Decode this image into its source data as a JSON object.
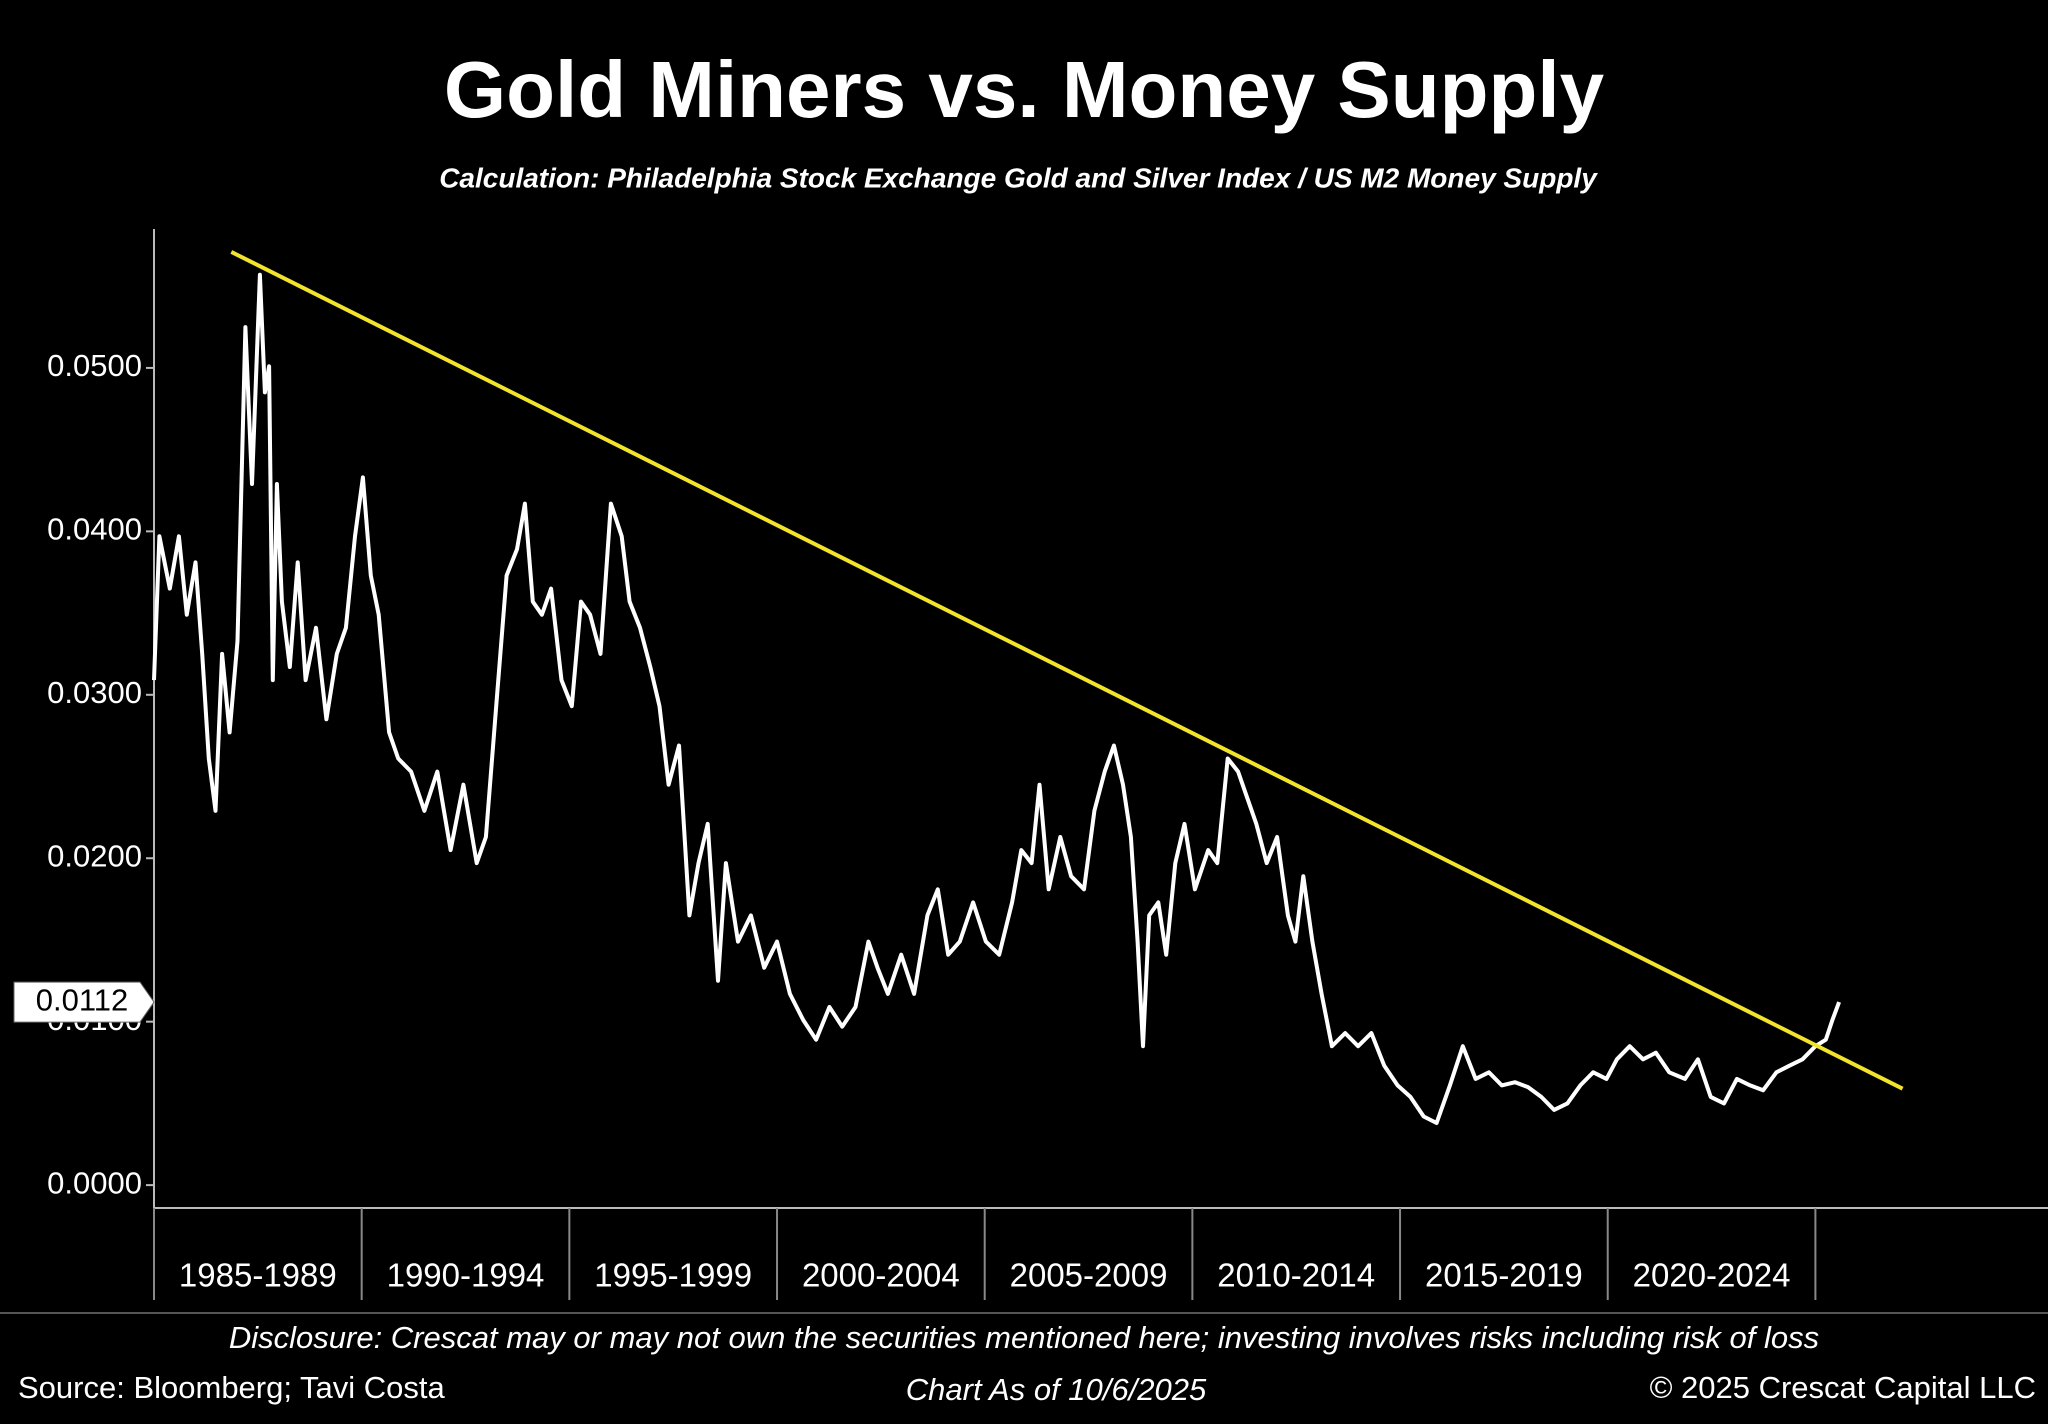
{
  "chart_data": {
    "type": "line",
    "title": "Gold Miners vs. Money Supply",
    "subtitle": "Calculation: Philadelphia Stock Exchange Gold and Silver Index / US M2 Money Supply",
    "xlim": [
      1985,
      2030.6
    ],
    "xticks": [
      1985,
      1990,
      1995,
      2000,
      2005,
      2010,
      2015,
      2020,
      2025
    ],
    "x_labels": [
      "1985-1989",
      "1990-1994",
      "1995-1999",
      "2000-2004",
      "2005-2009",
      "2010-2014",
      "2015-2019",
      "2020-2024"
    ],
    "ylim": [
      -0.0014,
      0.0585
    ],
    "yticks": [
      {
        "value": 0,
        "label": "0.0000"
      },
      {
        "value": 0.01,
        "label": "0.0100"
      },
      {
        "value": 0.02,
        "label": "0.0200"
      },
      {
        "value": 0.03,
        "label": "0.0300"
      },
      {
        "value": 0.04,
        "label": "0.0400"
      },
      {
        "value": 0.05,
        "label": "0.0500"
      }
    ],
    "series": [
      {
        "color": "#ffffff",
        "x": [
          1985.0,
          1985.13,
          1985.38,
          1985.6,
          1985.79,
          1986.0,
          1986.16,
          1986.32,
          1986.48,
          1986.64,
          1986.82,
          1987.01,
          1987.2,
          1987.36,
          1987.55,
          1987.67,
          1987.77,
          1987.86,
          1987.96,
          1988.08,
          1988.27,
          1988.46,
          1988.65,
          1988.9,
          1989.15,
          1989.4,
          1989.62,
          1989.84,
          1990.03,
          1990.22,
          1990.41,
          1990.66,
          1990.88,
          1991.19,
          1991.51,
          1991.82,
          1992.14,
          1992.45,
          1992.77,
          1992.99,
          1993.24,
          1993.49,
          1993.74,
          1993.93,
          1994.12,
          1994.34,
          1994.56,
          1994.81,
          1995.06,
          1995.28,
          1995.5,
          1995.75,
          1996.0,
          1996.26,
          1996.45,
          1996.7,
          1996.95,
          1997.17,
          1997.39,
          1997.64,
          1997.89,
          1998.11,
          1998.33,
          1998.58,
          1998.77,
          1999.06,
          1999.37,
          1999.69,
          2000.0,
          2000.31,
          2000.63,
          2000.94,
          2001.26,
          2001.57,
          2001.89,
          2002.2,
          2002.42,
          2002.67,
          2002.99,
          2003.3,
          2003.62,
          2003.87,
          2004.12,
          2004.4,
          2004.72,
          2005.03,
          2005.35,
          2005.66,
          2005.88,
          2006.13,
          2006.32,
          2006.54,
          2006.82,
          2007.08,
          2007.39,
          2007.64,
          2007.89,
          2008.11,
          2008.33,
          2008.52,
          2008.68,
          2008.81,
          2008.96,
          2009.18,
          2009.37,
          2009.59,
          2009.81,
          2010.06,
          2010.38,
          2010.6,
          2010.85,
          2011.1,
          2011.32,
          2011.54,
          2011.79,
          2012.04,
          2012.3,
          2012.48,
          2012.67,
          2012.89,
          2013.11,
          2013.36,
          2013.68,
          2013.99,
          2014.31,
          2014.62,
          2014.94,
          2015.25,
          2015.57,
          2015.88,
          2016.2,
          2016.51,
          2016.82,
          2017.14,
          2017.45,
          2017.77,
          2018.08,
          2018.4,
          2018.71,
          2019.03,
          2019.34,
          2019.65,
          2019.97,
          2020.22,
          2020.53,
          2020.85,
          2021.16,
          2021.48,
          2021.86,
          2022.17,
          2022.48,
          2022.8,
          2023.11,
          2023.43,
          2023.74,
          2024.06,
          2024.37,
          2024.69,
          2025.0,
          2025.25,
          2025.41,
          2025.57
        ],
        "values": [
          0.0309,
          0.0397,
          0.0365,
          0.0397,
          0.0349,
          0.0381,
          0.0325,
          0.0261,
          0.0229,
          0.0325,
          0.0277,
          0.0333,
          0.0525,
          0.0429,
          0.0557,
          0.0485,
          0.0501,
          0.0309,
          0.0429,
          0.0357,
          0.0317,
          0.0381,
          0.0309,
          0.0341,
          0.0285,
          0.0325,
          0.0341,
          0.0397,
          0.0433,
          0.0373,
          0.0349,
          0.0277,
          0.0261,
          0.0253,
          0.0229,
          0.0253,
          0.0205,
          0.0245,
          0.0197,
          0.0213,
          0.0293,
          0.0373,
          0.0389,
          0.0417,
          0.0357,
          0.0349,
          0.0365,
          0.0309,
          0.0293,
          0.0357,
          0.0349,
          0.0325,
          0.0417,
          0.0397,
          0.0357,
          0.0341,
          0.0317,
          0.0293,
          0.0245,
          0.0269,
          0.0165,
          0.0197,
          0.0221,
          0.0125,
          0.0197,
          0.0149,
          0.0165,
          0.0133,
          0.0149,
          0.0117,
          0.0101,
          0.0089,
          0.0109,
          0.0097,
          0.0109,
          0.0149,
          0.0133,
          0.0117,
          0.0141,
          0.0117,
          0.0165,
          0.0181,
          0.0141,
          0.0149,
          0.0173,
          0.0149,
          0.0141,
          0.0173,
          0.0205,
          0.0197,
          0.0245,
          0.0181,
          0.0213,
          0.0189,
          0.0181,
          0.0229,
          0.0253,
          0.0269,
          0.0245,
          0.0213,
          0.0149,
          0.0085,
          0.0165,
          0.0173,
          0.0141,
          0.0197,
          0.0221,
          0.0181,
          0.0205,
          0.0197,
          0.0261,
          0.0253,
          0.0237,
          0.0221,
          0.0197,
          0.0213,
          0.0165,
          0.0149,
          0.0189,
          0.0149,
          0.0117,
          0.0085,
          0.0093,
          0.0085,
          0.0093,
          0.0073,
          0.0061,
          0.0054,
          0.0042,
          0.0038,
          0.0061,
          0.0085,
          0.0065,
          0.0069,
          0.0061,
          0.0063,
          0.006,
          0.0054,
          0.0046,
          0.005,
          0.0061,
          0.0069,
          0.0065,
          0.0077,
          0.0085,
          0.0077,
          0.0081,
          0.0069,
          0.0065,
          0.0077,
          0.0054,
          0.005,
          0.0065,
          0.0061,
          0.0058,
          0.0069,
          0.0073,
          0.0077,
          0.0085,
          0.0089,
          0.0101,
          0.0112
        ]
      }
    ],
    "trendline": {
      "color": "#f2e42a",
      "x": [
        1986.86,
        2027.1
      ],
      "values": [
        0.0571,
        0.0059
      ]
    },
    "current_value": {
      "value": 0.0112,
      "label": "0.0112"
    },
    "footer": {
      "disclosure": "Disclosure: Crescat may or may not own the securities mentioned here; investing involves risks including risk of loss",
      "source": "Source: Bloomberg; Tavi Costa",
      "as_of": "Chart As of 10/6/2025",
      "copyright": "© 2025 Crescat Capital LLC"
    }
  }
}
